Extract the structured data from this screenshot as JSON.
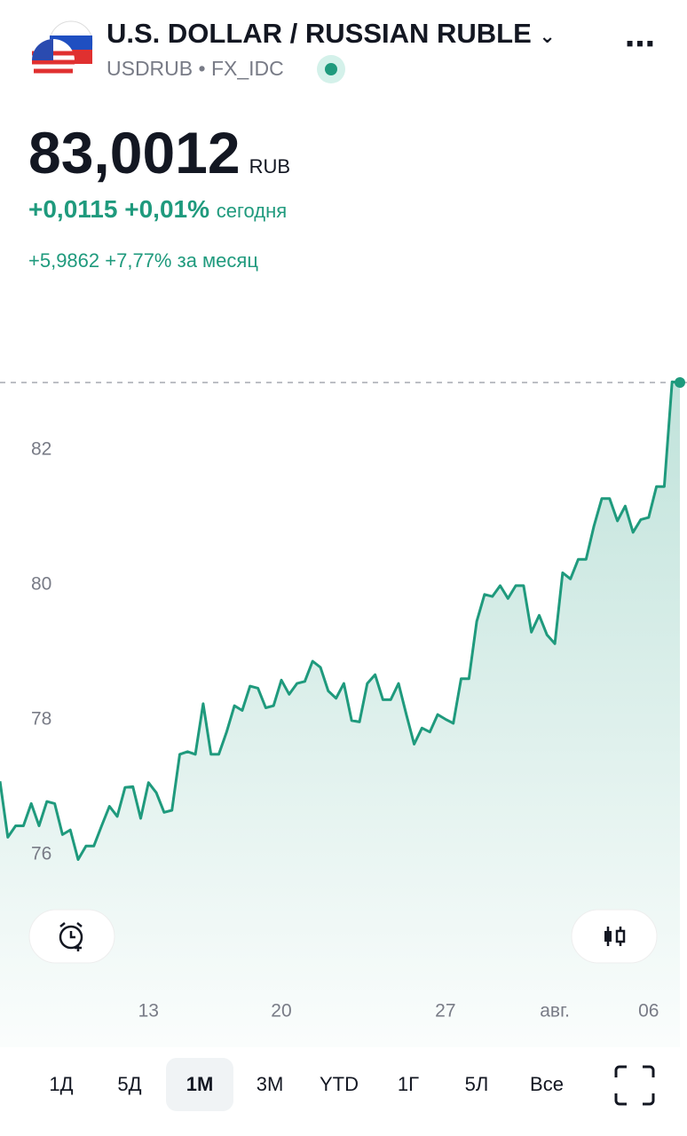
{
  "header": {
    "title": "U.S. DOLLAR / RUSSIAN RUBLE",
    "ticker": "USDRUB",
    "exchange": "FX_IDC"
  },
  "price": {
    "value": "83,0012",
    "currency": "RUB"
  },
  "today": {
    "change": "+0,0115",
    "percent": "+0,01%",
    "label": "сегодня"
  },
  "month": {
    "change": "+5,9862",
    "percent": "+7,77%",
    "label": "за месяц"
  },
  "periods": {
    "items": [
      "1Д",
      "5Д",
      "1М",
      "3М",
      "YTD",
      "1Г",
      "5Л",
      "Все"
    ],
    "selected": 2
  },
  "chart_data": {
    "type": "line",
    "color": "#1f9a7d",
    "values": [
      77.09,
      76.26,
      76.43,
      76.43,
      76.76,
      76.43,
      76.79,
      76.76,
      76.3,
      76.37,
      75.93,
      76.13,
      76.13,
      76.43,
      76.72,
      76.57,
      77.0,
      77.01,
      76.54,
      77.07,
      76.92,
      76.63,
      76.66,
      77.49,
      77.53,
      77.49,
      78.24,
      77.49,
      77.49,
      77.82,
      78.21,
      78.14,
      78.5,
      78.47,
      78.18,
      78.21,
      78.59,
      78.38,
      78.54,
      78.57,
      78.87,
      78.78,
      78.43,
      78.32,
      78.54,
      77.99,
      77.97,
      78.54,
      78.67,
      78.3,
      78.3,
      78.54,
      78.08,
      77.64,
      77.88,
      77.82,
      78.08,
      78.01,
      77.95,
      78.61,
      78.61,
      79.46,
      79.86,
      79.83,
      79.99,
      79.8,
      79.99,
      79.99,
      79.3,
      79.55,
      79.26,
      79.13,
      80.18,
      80.09,
      80.38,
      80.38,
      80.87,
      81.28,
      81.28,
      80.95,
      81.17,
      80.78,
      80.97,
      81.0,
      81.46,
      81.46,
      83.01,
      83.0012
    ],
    "xlim": [
      0,
      87
    ],
    "xticks": [
      {
        "value": 19,
        "label": "13"
      },
      {
        "value": 36,
        "label": "20"
      },
      {
        "value": 57,
        "label": "27"
      },
      {
        "value": 71,
        "label": "авг."
      },
      {
        "value": 83,
        "label": "06"
      }
    ],
    "ylim": [
      74.2,
      84.33
    ],
    "yticks": [
      76,
      78,
      80,
      82
    ]
  }
}
